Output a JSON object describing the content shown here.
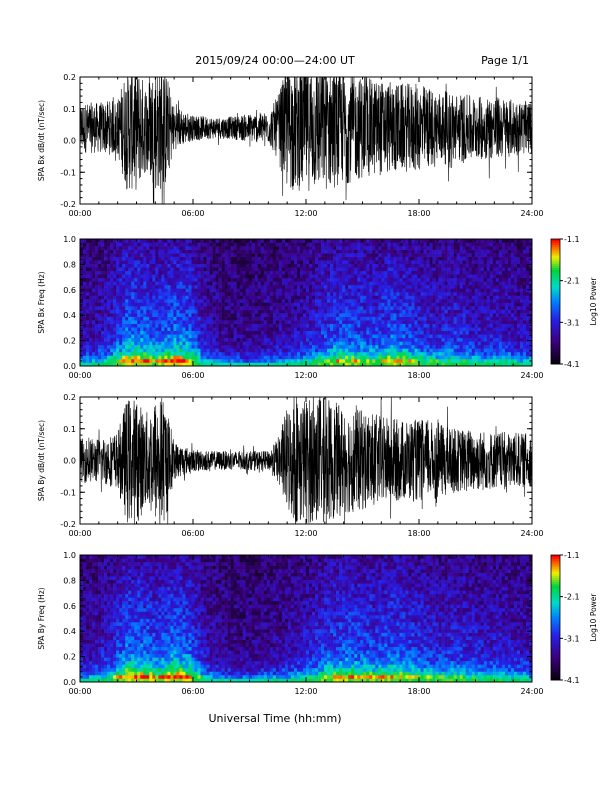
{
  "header": {
    "title": "2015/09/24  00:00—24:00 UT",
    "page": "Page 1/1"
  },
  "xlabel": "Universal Time (hh:mm)",
  "chart_data": [
    {
      "type": "line",
      "ylabel": "SPA Bx dB/dt (nT/sec)",
      "xlim": [
        0,
        24
      ],
      "ylim": [
        -0.2,
        0.2
      ],
      "x_ticks": [
        "00:00",
        "06:00",
        "12:00",
        "18:00",
        "24:00"
      ],
      "y_ticks": [
        "-0.2",
        "-0.1",
        "0.0",
        "0.1",
        "0.2"
      ],
      "series": [
        {
          "x": [
            0,
            1,
            2,
            2.5,
            3,
            3.5,
            4,
            4.5,
            5,
            6,
            7,
            8,
            9,
            10,
            10.5,
            11,
            11.5,
            12,
            13,
            14,
            15,
            16,
            17,
            18,
            19,
            20,
            21,
            22,
            23,
            24
          ],
          "amplitude": [
            0.08,
            0.08,
            0.09,
            0.2,
            0.2,
            0.14,
            0.2,
            0.2,
            0.07,
            0.04,
            0.035,
            0.035,
            0.045,
            0.05,
            0.1,
            0.2,
            0.2,
            0.2,
            0.2,
            0.18,
            0.16,
            0.15,
            0.14,
            0.14,
            0.12,
            0.11,
            0.1,
            0.1,
            0.09,
            0.08
          ],
          "offset": 0.04
        }
      ]
    },
    {
      "type": "heatmap",
      "ylabel": "SPA Bx Freq (Hz)",
      "xlim": [
        0,
        24
      ],
      "ylim": [
        0,
        1.0
      ],
      "x_ticks": [
        "00:00",
        "06:00",
        "12:00",
        "18:00",
        "24:00"
      ],
      "y_ticks": [
        "0.0",
        "0.2",
        "0.4",
        "0.6",
        "0.8",
        "1.0"
      ],
      "colorbar": {
        "label": "Log10 Power",
        "ticks": [
          "-1.1",
          "-2.1",
          "-3.1",
          "-4.1"
        ],
        "range": [
          -4.1,
          -1.1
        ]
      },
      "activity": [
        0.3,
        0.35,
        0.55,
        0.95,
        0.95,
        0.75,
        1.0,
        0.9,
        0.4,
        0.25,
        0.2,
        0.2,
        0.25,
        0.3,
        0.35,
        0.5,
        0.75,
        0.8,
        0.75,
        0.7,
        0.85,
        0.75,
        0.6,
        0.55,
        0.6,
        0.5,
        0.45,
        0.5,
        0.4,
        0.35
      ]
    },
    {
      "type": "line",
      "ylabel": "SPA By dB/dt (nT/sec)",
      "xlim": [
        0,
        24
      ],
      "ylim": [
        -0.2,
        0.2
      ],
      "x_ticks": [
        "00:00",
        "06:00",
        "12:00",
        "18:00",
        "24:00"
      ],
      "y_ticks": [
        "-0.2",
        "-0.1",
        "0.0",
        "0.1",
        "0.2"
      ],
      "series": [
        {
          "x": [
            0,
            1,
            2,
            2.5,
            3,
            3.5,
            4,
            4.5,
            5,
            6,
            7,
            8,
            9,
            10,
            10.5,
            11,
            11.5,
            12,
            13,
            14,
            15,
            16,
            17,
            18,
            19,
            20,
            21,
            22,
            23,
            24
          ],
          "amplitude": [
            0.07,
            0.07,
            0.09,
            0.2,
            0.2,
            0.15,
            0.2,
            0.2,
            0.06,
            0.035,
            0.03,
            0.03,
            0.03,
            0.03,
            0.07,
            0.17,
            0.2,
            0.2,
            0.2,
            0.17,
            0.16,
            0.14,
            0.13,
            0.13,
            0.12,
            0.1,
            0.1,
            0.09,
            0.09,
            0.08
          ],
          "offset": 0.0
        }
      ]
    },
    {
      "type": "heatmap",
      "ylabel": "SPA By Freq (Hz)",
      "xlim": [
        0,
        24
      ],
      "ylim": [
        0,
        1.0
      ],
      "x_ticks": [
        "00:00",
        "06:00",
        "12:00",
        "18:00",
        "24:00"
      ],
      "y_ticks": [
        "0.0",
        "0.2",
        "0.4",
        "0.6",
        "0.8",
        "1.0"
      ],
      "colorbar": {
        "label": "Log10 Power",
        "ticks": [
          "-1.1",
          "-2.1",
          "-3.1",
          "-4.1"
        ],
        "range": [
          -4.1,
          -1.1
        ]
      },
      "activity": [
        0.3,
        0.35,
        0.55,
        0.95,
        0.95,
        0.8,
        1.0,
        0.9,
        0.4,
        0.25,
        0.2,
        0.2,
        0.25,
        0.3,
        0.4,
        0.55,
        0.75,
        0.85,
        0.8,
        0.75,
        0.85,
        0.75,
        0.65,
        0.6,
        0.6,
        0.55,
        0.5,
        0.5,
        0.45,
        0.4
      ]
    }
  ]
}
